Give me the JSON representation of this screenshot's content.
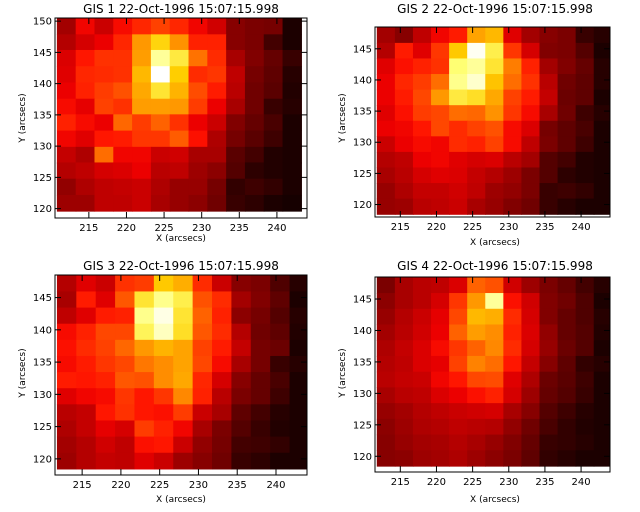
{
  "figure": {
    "background": "#ffffff",
    "axis_color": "#000000"
  },
  "chart_data": [
    {
      "type": "heatmap",
      "title": "GIS 1 22-Oct-1996 15:07:15.998",
      "xlabel": "X (arcsecs)",
      "ylabel": "Y (arcsecs)",
      "xlim": [
        210.5,
        244
      ],
      "ylim": [
        118.5,
        150.5
      ],
      "xticks": [
        215,
        220,
        225,
        230,
        235,
        240
      ],
      "yticks": [
        120,
        125,
        130,
        135,
        140,
        145,
        150
      ],
      "colormap": "red temperature (black-red-orange-white)",
      "x": [
        212.0,
        214.5,
        217.0,
        219.5,
        222.0,
        224.5,
        227.0,
        229.5,
        232.0,
        234.5,
        237.0,
        239.5,
        242.0
      ],
      "y": [
        149.2,
        146.6,
        144.1,
        141.5,
        138.9,
        136.3,
        133.8,
        131.2,
        128.6,
        126.1,
        123.5,
        120.9
      ],
      "values": [
        [
          0.29,
          0.43,
          0.36,
          0.44,
          0.49,
          0.54,
          0.49,
          0.43,
          0.37,
          0.24,
          0.22,
          0.21,
          0.05
        ],
        [
          0.32,
          0.38,
          0.42,
          0.49,
          0.7,
          0.81,
          0.69,
          0.48,
          0.48,
          0.24,
          0.22,
          0.12,
          0.05
        ],
        [
          0.39,
          0.46,
          0.51,
          0.51,
          0.71,
          0.92,
          0.85,
          0.63,
          0.5,
          0.3,
          0.23,
          0.18,
          0.1
        ],
        [
          0.4,
          0.49,
          0.5,
          0.51,
          0.76,
          1.0,
          0.8,
          0.5,
          0.52,
          0.34,
          0.21,
          0.17,
          0.07
        ],
        [
          0.42,
          0.48,
          0.53,
          0.57,
          0.73,
          0.84,
          0.75,
          0.56,
          0.47,
          0.33,
          0.2,
          0.16,
          0.06
        ],
        [
          0.44,
          0.41,
          0.54,
          0.51,
          0.71,
          0.71,
          0.7,
          0.53,
          0.42,
          0.3,
          0.2,
          0.1,
          0.07
        ],
        [
          0.48,
          0.44,
          0.42,
          0.61,
          0.53,
          0.6,
          0.51,
          0.42,
          0.36,
          0.23,
          0.18,
          0.13,
          0.05
        ],
        [
          0.43,
          0.4,
          0.46,
          0.47,
          0.52,
          0.52,
          0.59,
          0.45,
          0.31,
          0.21,
          0.16,
          0.11,
          0.05
        ],
        [
          0.35,
          0.31,
          0.62,
          0.43,
          0.43,
          0.36,
          0.37,
          0.3,
          0.3,
          0.16,
          0.12,
          0.06,
          0.05
        ],
        [
          0.32,
          0.34,
          0.38,
          0.39,
          0.42,
          0.33,
          0.34,
          0.28,
          0.25,
          0.15,
          0.08,
          0.06,
          0.05
        ],
        [
          0.26,
          0.31,
          0.34,
          0.35,
          0.36,
          0.31,
          0.27,
          0.27,
          0.21,
          0.09,
          0.11,
          0.09,
          0.05
        ],
        [
          0.28,
          0.28,
          0.34,
          0.34,
          0.36,
          0.3,
          0.27,
          0.25,
          0.2,
          0.1,
          0.08,
          0.05,
          0.04
        ]
      ]
    },
    {
      "type": "heatmap",
      "title": "GIS 2 22-Oct-1996 15:07:15.998",
      "xlabel": "X (arcsecs)",
      "ylabel": "Y (arcsecs)",
      "xlim": [
        211.5,
        244
      ],
      "ylim": [
        118,
        148.5
      ],
      "xticks": [
        215,
        220,
        225,
        230,
        235,
        240
      ],
      "yticks": [
        120,
        125,
        130,
        135,
        140,
        145
      ],
      "colormap": "red temperature (black-red-orange-white)",
      "x": [
        213.0,
        215.5,
        218.0,
        220.5,
        223.0,
        225.5,
        228.0,
        230.5,
        233.0,
        235.5,
        238.0,
        240.5,
        243.0
      ],
      "y": [
        147.2,
        144.7,
        142.2,
        139.7,
        137.2,
        134.7,
        132.2,
        129.7,
        127.2,
        124.7,
        122.2,
        119.7
      ],
      "values": [
        [
          0.29,
          0.24,
          0.34,
          0.43,
          0.47,
          0.72,
          0.76,
          0.4,
          0.29,
          0.24,
          0.22,
          0.1,
          0.07
        ],
        [
          0.32,
          0.47,
          0.4,
          0.52,
          0.79,
          0.99,
          0.86,
          0.52,
          0.38,
          0.23,
          0.22,
          0.15,
          0.05
        ],
        [
          0.4,
          0.45,
          0.48,
          0.51,
          0.89,
          0.92,
          0.84,
          0.65,
          0.48,
          0.29,
          0.23,
          0.18,
          0.07
        ],
        [
          0.42,
          0.49,
          0.53,
          0.62,
          0.91,
          0.96,
          0.78,
          0.62,
          0.51,
          0.33,
          0.2,
          0.17,
          0.07
        ],
        [
          0.42,
          0.47,
          0.55,
          0.7,
          0.85,
          0.83,
          0.73,
          0.54,
          0.47,
          0.35,
          0.19,
          0.17,
          0.05
        ],
        [
          0.4,
          0.45,
          0.53,
          0.55,
          0.62,
          0.61,
          0.69,
          0.52,
          0.44,
          0.3,
          0.2,
          0.11,
          0.07
        ],
        [
          0.42,
          0.43,
          0.46,
          0.55,
          0.5,
          0.54,
          0.57,
          0.44,
          0.39,
          0.21,
          0.17,
          0.13,
          0.05
        ],
        [
          0.36,
          0.42,
          0.44,
          0.43,
          0.5,
          0.48,
          0.54,
          0.44,
          0.34,
          0.22,
          0.17,
          0.11,
          0.05
        ],
        [
          0.32,
          0.34,
          0.42,
          0.43,
          0.4,
          0.38,
          0.39,
          0.33,
          0.29,
          0.15,
          0.12,
          0.06,
          0.05
        ],
        [
          0.3,
          0.33,
          0.38,
          0.4,
          0.39,
          0.35,
          0.32,
          0.28,
          0.22,
          0.15,
          0.08,
          0.06,
          0.05
        ],
        [
          0.27,
          0.31,
          0.35,
          0.35,
          0.37,
          0.34,
          0.28,
          0.26,
          0.22,
          0.1,
          0.11,
          0.09,
          0.05
        ],
        [
          0.27,
          0.28,
          0.33,
          0.34,
          0.36,
          0.3,
          0.27,
          0.23,
          0.2,
          0.1,
          0.07,
          0.05,
          0.05
        ]
      ]
    },
    {
      "type": "heatmap",
      "title": "GIS 3 22-Oct-1996 15:07:15.998",
      "xlabel": "X (arcsecs)",
      "ylabel": "Y (arcsecs)",
      "xlim": [
        211.5,
        244
      ],
      "ylim": [
        117.5,
        148.5
      ],
      "xticks": [
        215,
        220,
        225,
        230,
        235,
        240
      ],
      "yticks": [
        120,
        125,
        130,
        135,
        140,
        145
      ],
      "colormap": "red temperature (black-red-orange-white)",
      "x": [
        213.0,
        215.5,
        218.0,
        220.5,
        223.0,
        225.5,
        228.0,
        230.5,
        233.0,
        235.5,
        238.0,
        240.5,
        243.0
      ],
      "y": [
        147.2,
        144.7,
        142.2,
        139.7,
        137.2,
        134.7,
        132.2,
        129.7,
        127.2,
        124.7,
        122.2,
        119.7
      ],
      "values": [
        [
          0.32,
          0.4,
          0.36,
          0.51,
          0.53,
          0.79,
          0.74,
          0.5,
          0.36,
          0.24,
          0.22,
          0.14,
          0.07
        ],
        [
          0.3,
          0.47,
          0.4,
          0.58,
          0.84,
          0.91,
          0.86,
          0.57,
          0.5,
          0.29,
          0.23,
          0.17,
          0.05
        ],
        [
          0.34,
          0.4,
          0.47,
          0.48,
          0.91,
          0.98,
          0.84,
          0.6,
          0.48,
          0.25,
          0.21,
          0.15,
          0.07
        ],
        [
          0.44,
          0.48,
          0.55,
          0.55,
          0.87,
          0.95,
          0.83,
          0.58,
          0.5,
          0.32,
          0.2,
          0.17,
          0.06
        ],
        [
          0.45,
          0.5,
          0.54,
          0.61,
          0.7,
          0.75,
          0.72,
          0.54,
          0.47,
          0.35,
          0.21,
          0.19,
          0.05
        ],
        [
          0.44,
          0.47,
          0.52,
          0.55,
          0.64,
          0.68,
          0.72,
          0.55,
          0.44,
          0.3,
          0.21,
          0.1,
          0.07
        ],
        [
          0.47,
          0.46,
          0.48,
          0.58,
          0.57,
          0.68,
          0.73,
          0.49,
          0.38,
          0.24,
          0.18,
          0.13,
          0.05
        ],
        [
          0.4,
          0.43,
          0.44,
          0.52,
          0.46,
          0.52,
          0.67,
          0.48,
          0.33,
          0.22,
          0.18,
          0.11,
          0.05
        ],
        [
          0.33,
          0.35,
          0.46,
          0.51,
          0.46,
          0.45,
          0.53,
          0.36,
          0.3,
          0.17,
          0.12,
          0.07,
          0.05
        ],
        [
          0.31,
          0.35,
          0.41,
          0.38,
          0.53,
          0.48,
          0.43,
          0.3,
          0.22,
          0.15,
          0.1,
          0.06,
          0.05
        ],
        [
          0.29,
          0.32,
          0.37,
          0.34,
          0.45,
          0.46,
          0.36,
          0.26,
          0.21,
          0.12,
          0.11,
          0.09,
          0.05
        ],
        [
          0.28,
          0.32,
          0.35,
          0.34,
          0.4,
          0.36,
          0.28,
          0.24,
          0.2,
          0.1,
          0.08,
          0.05,
          0.05
        ]
      ]
    },
    {
      "type": "heatmap",
      "title": "GIS 4 22-Oct-1996 15:07:15.998",
      "xlabel": "X (arcsecs)",
      "ylabel": "Y (arcsecs)",
      "xlim": [
        211.5,
        244
      ],
      "ylim": [
        117.5,
        148.5
      ],
      "xticks": [
        215,
        220,
        225,
        230,
        235,
        240
      ],
      "yticks": [
        120,
        125,
        130,
        135,
        140,
        145
      ],
      "colormap": "red temperature (black-red-orange-white)",
      "x": [
        213.0,
        215.5,
        218.0,
        220.5,
        223.0,
        225.5,
        228.0,
        230.5,
        233.0,
        235.5,
        238.0,
        240.5,
        243.0
      ],
      "y": [
        147.2,
        144.7,
        142.2,
        139.7,
        137.2,
        134.7,
        132.2,
        129.7,
        127.2,
        124.7,
        122.2,
        119.7
      ],
      "values": [
        [
          0.22,
          0.3,
          0.33,
          0.34,
          0.39,
          0.6,
          0.57,
          0.37,
          0.28,
          0.22,
          0.18,
          0.12,
          0.07
        ],
        [
          0.25,
          0.3,
          0.33,
          0.38,
          0.52,
          0.7,
          0.92,
          0.45,
          0.37,
          0.23,
          0.2,
          0.14,
          0.05
        ],
        [
          0.27,
          0.32,
          0.36,
          0.41,
          0.55,
          0.76,
          0.74,
          0.5,
          0.38,
          0.23,
          0.18,
          0.14,
          0.07
        ],
        [
          0.29,
          0.33,
          0.37,
          0.42,
          0.6,
          0.71,
          0.68,
          0.48,
          0.39,
          0.26,
          0.18,
          0.15,
          0.06
        ],
        [
          0.31,
          0.35,
          0.39,
          0.44,
          0.52,
          0.6,
          0.67,
          0.5,
          0.38,
          0.27,
          0.19,
          0.15,
          0.05
        ],
        [
          0.32,
          0.34,
          0.39,
          0.41,
          0.54,
          0.66,
          0.62,
          0.46,
          0.35,
          0.24,
          0.17,
          0.09,
          0.07
        ],
        [
          0.33,
          0.35,
          0.36,
          0.43,
          0.46,
          0.55,
          0.56,
          0.4,
          0.31,
          0.19,
          0.16,
          0.11,
          0.05
        ],
        [
          0.3,
          0.33,
          0.34,
          0.39,
          0.42,
          0.45,
          0.48,
          0.38,
          0.28,
          0.18,
          0.15,
          0.1,
          0.05
        ],
        [
          0.27,
          0.29,
          0.32,
          0.34,
          0.36,
          0.37,
          0.38,
          0.3,
          0.24,
          0.15,
          0.11,
          0.07,
          0.05
        ],
        [
          0.25,
          0.28,
          0.31,
          0.32,
          0.34,
          0.33,
          0.32,
          0.26,
          0.2,
          0.13,
          0.09,
          0.06,
          0.05
        ],
        [
          0.24,
          0.27,
          0.29,
          0.3,
          0.32,
          0.3,
          0.27,
          0.23,
          0.18,
          0.1,
          0.09,
          0.07,
          0.05
        ],
        [
          0.24,
          0.25,
          0.28,
          0.29,
          0.31,
          0.28,
          0.25,
          0.22,
          0.17,
          0.09,
          0.07,
          0.05,
          0.05
        ]
      ]
    }
  ]
}
